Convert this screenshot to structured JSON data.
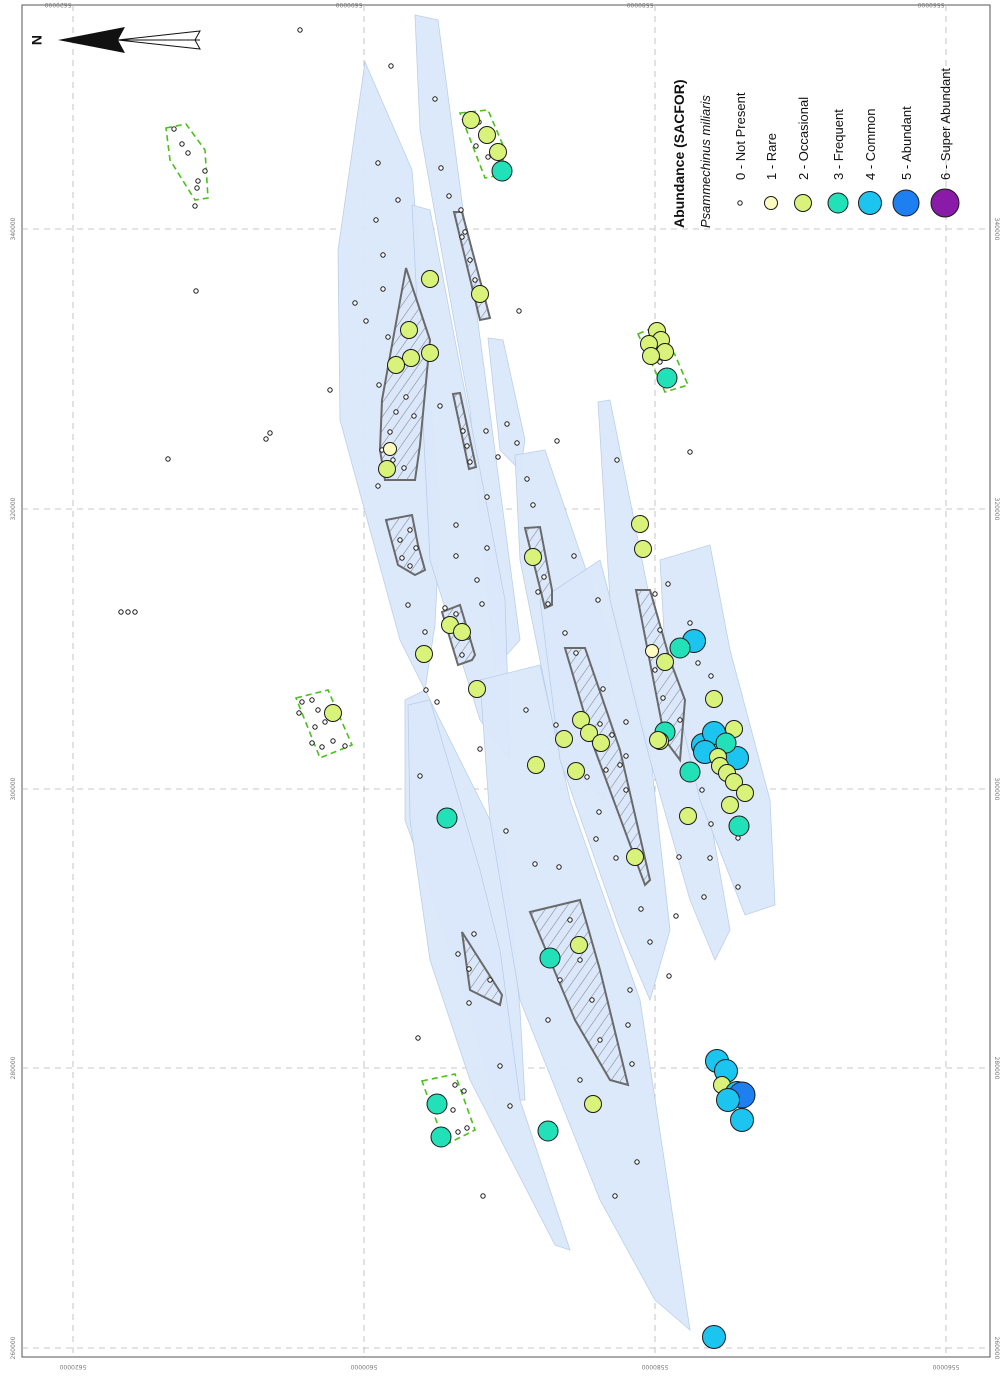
{
  "legend": {
    "title": "Abundance (SACFOR)",
    "subtitle": "Psammechinus miliaris",
    "items": [
      {
        "label": "0 - Not Present",
        "color": "#ffffff",
        "level": 0
      },
      {
        "label": "1 - Rare",
        "color": "#fffcc0",
        "level": 1
      },
      {
        "label": "2 - Occasional",
        "color": "#d9f37a",
        "level": 2
      },
      {
        "label": "3 - Frequent",
        "color": "#22e0b8",
        "level": 3
      },
      {
        "label": "4 - Common",
        "color": "#1cc4f0",
        "level": 4
      },
      {
        "label": "5 - Abundant",
        "color": "#1d7ff0",
        "level": 5
      },
      {
        "label": "6 - Super Abundant",
        "color": "#8a1aa8",
        "level": 6
      }
    ]
  },
  "north_arrow": {
    "label": "N",
    "icon": "north-arrow-icon"
  },
  "grid": {
    "bottom_ticks": [
      "5620000",
      "5600000",
      "5580000",
      "5560000"
    ],
    "top_ticks": [
      "5620000",
      "5600000",
      "5580000",
      "5560000"
    ],
    "left_ticks": [
      "340000",
      "320000",
      "300000",
      "280000",
      "260000"
    ],
    "right_ticks": [
      "340000",
      "320000",
      "300000",
      "280000",
      "260000"
    ]
  },
  "colors": {
    "survey_area_fill": "#dbe8fb",
    "hatched_outline": "#6a6a6a",
    "sample_box": "#4cbf1d",
    "grid": "#b8b8b8"
  },
  "stations": [
    [
      300,
      30,
      0
    ],
    [
      391,
      66,
      0
    ],
    [
      435,
      99,
      0
    ],
    [
      378,
      163,
      0
    ],
    [
      441,
      168,
      0
    ],
    [
      449,
      196,
      0
    ],
    [
      398,
      200,
      0
    ],
    [
      376,
      220,
      0
    ],
    [
      461,
      210,
      0
    ],
    [
      465,
      232,
      0
    ],
    [
      383,
      255,
      0
    ],
    [
      383,
      289,
      0
    ],
    [
      355,
      303,
      0
    ],
    [
      366,
      321,
      0
    ],
    [
      388,
      337,
      0
    ],
    [
      379,
      385,
      0
    ],
    [
      406,
      397,
      0
    ],
    [
      396,
      412,
      0
    ],
    [
      414,
      416,
      0
    ],
    [
      390,
      432,
      0
    ],
    [
      382,
      450,
      0
    ],
    [
      393,
      460,
      0
    ],
    [
      404,
      468,
      0
    ],
    [
      378,
      486,
      0
    ],
    [
      330,
      390,
      0
    ],
    [
      270,
      433,
      0
    ],
    [
      266,
      439,
      0
    ],
    [
      168,
      459,
      0
    ],
    [
      196,
      291,
      0
    ],
    [
      195,
      206,
      0
    ],
    [
      519,
      311,
      0
    ],
    [
      440,
      406,
      0
    ],
    [
      486,
      431,
      0
    ],
    [
      507,
      424,
      0
    ],
    [
      517,
      443,
      0
    ],
    [
      557,
      441,
      0
    ],
    [
      498,
      457,
      0
    ],
    [
      527,
      479,
      0
    ],
    [
      487,
      497,
      0
    ],
    [
      456,
      525,
      0
    ],
    [
      456,
      556,
      0
    ],
    [
      487,
      548,
      0
    ],
    [
      477,
      580,
      0
    ],
    [
      482,
      604,
      0
    ],
    [
      408,
      605,
      0
    ],
    [
      425,
      632,
      0
    ],
    [
      426,
      690,
      0
    ],
    [
      437,
      702,
      0
    ],
    [
      480,
      749,
      0
    ],
    [
      420,
      776,
      0
    ],
    [
      418,
      1038,
      0
    ],
    [
      458,
      954,
      0
    ],
    [
      469,
      969,
      0
    ],
    [
      469,
      1003,
      0
    ],
    [
      500,
      1066,
      0
    ],
    [
      510,
      1106,
      0
    ],
    [
      545,
      1132,
      0
    ],
    [
      483,
      1196,
      0
    ],
    [
      535,
      864,
      0
    ],
    [
      559,
      867,
      0
    ],
    [
      533,
      505,
      0
    ],
    [
      574,
      556,
      0
    ],
    [
      598,
      600,
      0
    ],
    [
      565,
      633,
      0
    ],
    [
      576,
      653,
      0
    ],
    [
      603,
      689,
      0
    ],
    [
      626,
      722,
      0
    ],
    [
      626,
      756,
      0
    ],
    [
      599,
      812,
      0
    ],
    [
      596,
      839,
      0
    ],
    [
      616,
      858,
      0
    ],
    [
      641,
      909,
      0
    ],
    [
      650,
      942,
      0
    ],
    [
      669,
      976,
      0
    ],
    [
      628,
      1025,
      0
    ],
    [
      632,
      1064,
      0
    ],
    [
      637,
      1162,
      0
    ],
    [
      615,
      1196,
      0
    ],
    [
      617,
      460,
      0
    ],
    [
      690,
      452,
      0
    ],
    [
      668,
      584,
      0
    ],
    [
      690,
      623,
      0
    ],
    [
      698,
      663,
      0
    ],
    [
      711,
      676,
      0
    ],
    [
      715,
      697,
      0
    ],
    [
      679,
      857,
      0
    ],
    [
      676,
      916,
      0
    ],
    [
      704,
      897,
      0
    ],
    [
      710,
      858,
      0
    ],
    [
      738,
      887,
      0
    ],
    [
      711,
      824,
      0
    ],
    [
      738,
      838,
      0
    ],
    [
      718,
      1341,
      0
    ],
    [
      526,
      710,
      0
    ],
    [
      556,
      725,
      0
    ],
    [
      506,
      831,
      0
    ],
    [
      121,
      612,
      0
    ],
    [
      128,
      612,
      0
    ],
    [
      135,
      612,
      0
    ],
    [
      174,
      129,
      0
    ],
    [
      182,
      144,
      0
    ],
    [
      188,
      153,
      0
    ],
    [
      198,
      181,
      0
    ],
    [
      197,
      188,
      0
    ],
    [
      205,
      171,
      0
    ],
    [
      302,
      702,
      0
    ],
    [
      312,
      700,
      0
    ],
    [
      318,
      710,
      0
    ],
    [
      325,
      722,
      0
    ],
    [
      315,
      727,
      0
    ],
    [
      312,
      743,
      0
    ],
    [
      322,
      747,
      0
    ],
    [
      333,
      741,
      0
    ],
    [
      345,
      746,
      0
    ],
    [
      299,
      713,
      0
    ],
    [
      455,
      1085,
      0
    ],
    [
      464,
      1091,
      0
    ],
    [
      453,
      1110,
      0
    ],
    [
      467,
      1128,
      0
    ],
    [
      458,
      1132,
      0
    ],
    [
      479,
      122,
      0
    ],
    [
      486,
      137,
      0
    ],
    [
      476,
      146,
      0
    ],
    [
      488,
      157,
      0
    ],
    [
      470,
      115,
      0
    ],
    [
      660,
      362,
      0
    ],
    [
      670,
      373,
      0
    ],
    [
      674,
      378,
      0
    ],
    [
      410,
      530,
      0
    ],
    [
      400,
      540,
      0
    ],
    [
      402,
      558,
      0
    ],
    [
      410,
      566,
      0
    ],
    [
      416,
      548,
      0
    ],
    [
      445,
      608,
      0
    ],
    [
      456,
      614,
      0
    ],
    [
      468,
      637,
      0
    ],
    [
      462,
      655,
      0
    ],
    [
      544,
      577,
      0
    ],
    [
      538,
      592,
      0
    ],
    [
      548,
      604,
      0
    ],
    [
      600,
      724,
      0
    ],
    [
      612,
      735,
      0
    ],
    [
      620,
      765,
      0
    ],
    [
      626,
      790,
      0
    ],
    [
      606,
      770,
      0
    ],
    [
      587,
      777,
      0
    ],
    [
      582,
      722,
      0
    ],
    [
      462,
      237,
      0
    ],
    [
      470,
      260,
      0
    ],
    [
      475,
      280,
      0
    ],
    [
      463,
      431,
      0
    ],
    [
      467,
      446,
      0
    ],
    [
      470,
      462,
      0
    ],
    [
      655,
      594,
      0
    ],
    [
      660,
      630,
      0
    ],
    [
      655,
      670,
      0
    ],
    [
      663,
      698,
      0
    ],
    [
      680,
      720,
      0
    ],
    [
      700,
      750,
      0
    ],
    [
      702,
      790,
      0
    ],
    [
      570,
      920,
      0
    ],
    [
      580,
      960,
      0
    ],
    [
      592,
      1000,
      0
    ],
    [
      600,
      1040,
      0
    ],
    [
      580,
      1080,
      0
    ],
    [
      560,
      980,
      0
    ],
    [
      548,
      1020,
      0
    ],
    [
      630,
      990,
      0
    ],
    [
      490,
      980,
      0
    ],
    [
      474,
      934,
      0
    ],
    [
      387,
      469,
      2
    ],
    [
      390,
      449,
      1
    ],
    [
      430,
      279,
      2
    ],
    [
      409,
      330,
      2
    ],
    [
      411,
      358,
      2
    ],
    [
      430,
      353,
      2
    ],
    [
      396,
      365,
      2
    ],
    [
      471,
      120,
      2
    ],
    [
      487,
      135,
      2
    ],
    [
      498,
      152,
      2
    ],
    [
      502,
      171,
      3
    ],
    [
      480,
      294,
      2
    ],
    [
      657,
      331,
      2
    ],
    [
      661,
      340,
      2
    ],
    [
      649,
      344,
      2
    ],
    [
      665,
      352,
      2
    ],
    [
      651,
      356,
      2
    ],
    [
      667,
      378,
      3
    ],
    [
      640,
      524,
      2
    ],
    [
      643,
      549,
      2
    ],
    [
      533,
      557,
      2
    ],
    [
      450,
      625,
      2
    ],
    [
      462,
      632,
      2
    ],
    [
      424,
      654,
      2
    ],
    [
      477,
      689,
      2
    ],
    [
      333,
      713,
      2
    ],
    [
      447,
      818,
      3
    ],
    [
      536,
      765,
      2
    ],
    [
      564,
      739,
      2
    ],
    [
      581,
      720,
      2
    ],
    [
      589,
      733,
      2
    ],
    [
      601,
      743,
      2
    ],
    [
      576,
      771,
      2
    ],
    [
      635,
      857,
      2
    ],
    [
      579,
      945,
      2
    ],
    [
      550,
      958,
      3
    ],
    [
      593,
      1104,
      2
    ],
    [
      548,
      1131,
      3
    ],
    [
      437,
      1104,
      3
    ],
    [
      441,
      1137,
      3
    ],
    [
      694,
      641,
      4
    ],
    [
      680,
      648,
      3
    ],
    [
      665,
      662,
      2
    ],
    [
      714,
      699,
      2
    ],
    [
      665,
      732,
      3
    ],
    [
      660,
      741,
      2
    ],
    [
      658,
      740,
      2
    ],
    [
      703,
      745,
      4
    ],
    [
      714,
      733,
      4
    ],
    [
      734,
      729,
      2
    ],
    [
      737,
      758,
      4
    ],
    [
      726,
      743,
      3
    ],
    [
      705,
      752,
      4
    ],
    [
      718,
      757,
      2
    ],
    [
      720,
      766,
      2
    ],
    [
      690,
      772,
      3
    ],
    [
      727,
      773,
      2
    ],
    [
      734,
      782,
      2
    ],
    [
      745,
      793,
      2
    ],
    [
      730,
      805,
      2
    ],
    [
      739,
      826,
      3
    ],
    [
      688,
      816,
      2
    ],
    [
      652,
      651,
      1
    ],
    [
      717,
      1061,
      4
    ],
    [
      726,
      1071,
      4
    ],
    [
      722,
      1085,
      2
    ],
    [
      737,
      1093,
      4
    ],
    [
      742,
      1095,
      5
    ],
    [
      728,
      1100,
      4
    ],
    [
      742,
      1120,
      4
    ],
    [
      714,
      1337,
      4
    ]
  ]
}
